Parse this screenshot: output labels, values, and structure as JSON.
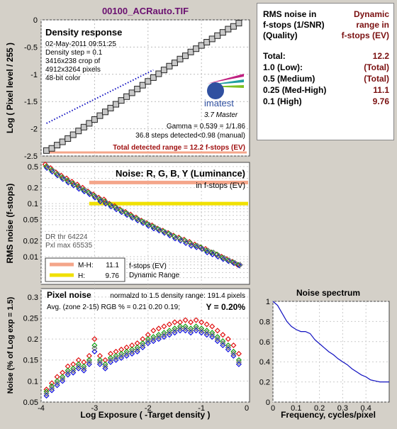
{
  "file_title": "00100_ACRauto.TIF",
  "density": {
    "title": "Density response",
    "info": [
      "02-May-2011 09:51:25",
      "Density step = 0.1",
      "3416x238 crop of",
      "4912x3264 pixels",
      "48-bit color"
    ],
    "logo_text": "imatest",
    "logo_sub": "3.7  Master",
    "gamma_line": "Gamma = 0.539 = 1/1.86",
    "steps_line": "36.8 steps detected<0.98 (manual)",
    "range_line": "Total detected range = 12.2 f-stops (EV)",
    "ylabel": "Log ( Pixel level / 255 )",
    "y_ticks": [
      "0",
      "-0.5",
      "-1",
      "-1.5",
      "-2",
      "-2.5"
    ]
  },
  "noise": {
    "title": "Noise: R, G, B, Y (Luminance)",
    "subtitle": "in f-stops (EV)",
    "dr_thr": "DR thr 64224",
    "pxl_max": "Pxl max 65535",
    "ylabel": "RMS noise (f-stops)",
    "y_ticks": [
      "0.5",
      "0.2",
      "0.1",
      "0.05",
      "0.02",
      "0.01"
    ],
    "legend": [
      {
        "label": "M-H:",
        "value": "11.1",
        "color": "#f4a58a"
      },
      {
        "label": "H:",
        "value": "9.76",
        "color": "#f0e000"
      }
    ],
    "legend_note1": "f-stops (EV)",
    "legend_note2": "Dynamic Range"
  },
  "pixel_noise": {
    "title": "Pixel noise",
    "norm_line": "normalzd to 1.5 density range: 191.4 pixels",
    "avg_line": "Avg. (zone 2-15) RGB % = 0.21  0.20  0.19;",
    "y_line": "Y = 0.20%",
    "ylabel": "Noise (% of Log exp = 1.5)",
    "xlabel": "Log Exposure ( -Target density )",
    "y_ticks": [
      "0.3",
      "0.25",
      "0.2",
      "0.15",
      "0.1",
      "0.05"
    ],
    "x_ticks": [
      "-4",
      "-3",
      "-2",
      "-1",
      "0"
    ]
  },
  "spectrum": {
    "title": "Noise spectrum",
    "xlabel": "Frequency, cycles/pixel",
    "y_ticks": [
      "1",
      "0.8",
      "0.6",
      "0.4",
      "0.2",
      "0"
    ],
    "x_ticks": [
      "0",
      "0.1",
      "0.2",
      "0.3",
      "0.4"
    ]
  },
  "rms_table": {
    "header_left": [
      "RMS noise in",
      "f-stops (1/SNR)",
      "(Quality)"
    ],
    "header_right": [
      "Dynamic",
      "range in",
      "f-stops (EV)"
    ],
    "rows": [
      {
        "q": "Total:",
        "v": "12.2"
      },
      {
        "q": "1.0  (Low):",
        "v": "(Total)"
      },
      {
        "q": "0.5  (Medium)",
        "v": "(Total)"
      },
      {
        "q": "0.25 (Med-High)",
        "v": "11.1"
      },
      {
        "q": "0.1  (High)",
        "v": "9.76"
      }
    ]
  },
  "colors": {
    "red": "#e01010",
    "green": "#10a010",
    "blue": "#1010e0",
    "gray": "#707070",
    "title": "#6a1070"
  },
  "chart_data": [
    {
      "type": "scatter",
      "title": "Density response",
      "ylabel": "Log ( Pixel level / 255 )",
      "x": [
        -3.9,
        -3.8,
        -3.7,
        -3.6,
        -3.5,
        -3.4,
        -3.3,
        -3.2,
        -3.1,
        -3.0,
        -2.9,
        -2.8,
        -2.7,
        -2.6,
        -2.5,
        -2.4,
        -2.3,
        -2.2,
        -2.1,
        -2.0,
        -1.9,
        -1.8,
        -1.7,
        -1.6,
        -1.5,
        -1.4,
        -1.3,
        -1.2,
        -1.1,
        -1.0,
        -0.9,
        -0.8,
        -0.7,
        -0.6,
        -0.5,
        -0.4,
        -0.3
      ],
      "y": [
        -2.4,
        -2.36,
        -2.3,
        -2.24,
        -2.18,
        -2.11,
        -2.04,
        -1.97,
        -1.9,
        -1.83,
        -1.76,
        -1.69,
        -1.62,
        -1.55,
        -1.48,
        -1.41,
        -1.34,
        -1.27,
        -1.2,
        -1.13,
        -1.06,
        -0.99,
        -0.92,
        -0.85,
        -0.79,
        -0.72,
        -0.66,
        -0.59,
        -0.53,
        -0.47,
        -0.41,
        -0.35,
        -0.29,
        -0.23,
        -0.17,
        -0.12,
        -0.06
      ],
      "ylim": [
        -2.5,
        0
      ],
      "gamma_fit": {
        "x": [
          -3.9,
          -1.9
        ],
        "y": [
          -1.9,
          -0.92
        ]
      }
    },
    {
      "type": "scatter",
      "title": "Noise: R, G, B, Y (Luminance)",
      "ylabel": "RMS noise (f-stops)",
      "y_scale": "log",
      "ylim": [
        0.003,
        0.6
      ],
      "x": [
        -3.9,
        -3.8,
        -3.7,
        -3.6,
        -3.5,
        -3.4,
        -3.3,
        -3.2,
        -3.1,
        -3.0,
        -2.9,
        -2.8,
        -2.7,
        -2.6,
        -2.5,
        -2.4,
        -2.3,
        -2.2,
        -2.1,
        -2.0,
        -1.9,
        -1.8,
        -1.7,
        -1.6,
        -1.5,
        -1.4,
        -1.3,
        -1.2,
        -1.1,
        -1.0,
        -0.9,
        -0.8,
        -0.7,
        -0.6,
        -0.5,
        -0.4,
        -0.3
      ],
      "series": [
        {
          "name": "R",
          "values": [
            0.55,
            0.47,
            0.39,
            0.34,
            0.3,
            0.26,
            0.23,
            0.2,
            0.17,
            0.15,
            0.13,
            0.12,
            0.1,
            0.09,
            0.078,
            0.07,
            0.062,
            0.055,
            0.048,
            0.043,
            0.039,
            0.034,
            0.031,
            0.028,
            0.025,
            0.023,
            0.021,
            0.019,
            0.017,
            0.015,
            0.014,
            0.012,
            0.011,
            0.01,
            0.009,
            0.008,
            0.007
          ]
        },
        {
          "name": "G",
          "values": [
            0.5,
            0.43,
            0.36,
            0.31,
            0.27,
            0.24,
            0.21,
            0.18,
            0.16,
            0.14,
            0.12,
            0.11,
            0.095,
            0.085,
            0.074,
            0.066,
            0.058,
            0.052,
            0.046,
            0.041,
            0.037,
            0.033,
            0.03,
            0.027,
            0.024,
            0.022,
            0.02,
            0.018,
            0.016,
            0.015,
            0.013,
            0.012,
            0.011,
            0.0095,
            0.0085,
            0.0078,
            0.007
          ]
        },
        {
          "name": "B",
          "values": [
            0.47,
            0.4,
            0.34,
            0.29,
            0.25,
            0.22,
            0.19,
            0.17,
            0.15,
            0.13,
            0.11,
            0.1,
            0.088,
            0.078,
            0.069,
            0.061,
            0.054,
            0.048,
            0.043,
            0.038,
            0.034,
            0.031,
            0.028,
            0.025,
            0.022,
            0.02,
            0.018,
            0.016,
            0.015,
            0.014,
            0.012,
            0.011,
            0.01,
            0.009,
            0.0082,
            0.0075,
            0.0068
          ]
        },
        {
          "name": "Y",
          "values": [
            0.49,
            0.42,
            0.35,
            0.3,
            0.26,
            0.23,
            0.2,
            0.18,
            0.155,
            0.135,
            0.118,
            0.105,
            0.092,
            0.082,
            0.072,
            0.064,
            0.056,
            0.05,
            0.045,
            0.04,
            0.036,
            0.032,
            0.029,
            0.026,
            0.023,
            0.021,
            0.019,
            0.017,
            0.016,
            0.014,
            0.013,
            0.012,
            0.0105,
            0.0095,
            0.0085,
            0.0077,
            0.007
          ]
        }
      ],
      "reference_lines": [
        {
          "y": 0.25,
          "color": "#f4a58a"
        },
        {
          "y": 0.1,
          "color": "#f0e000"
        }
      ]
    },
    {
      "type": "scatter",
      "title": "Pixel noise",
      "xlabel": "Log Exposure ( -Target density )",
      "ylabel": "Noise (% of Log exp = 1.5)",
      "xlim": [
        -4,
        0
      ],
      "ylim": [
        0.05,
        0.32
      ],
      "x": [
        -3.9,
        -3.8,
        -3.7,
        -3.6,
        -3.5,
        -3.4,
        -3.3,
        -3.2,
        -3.1,
        -3.0,
        -2.9,
        -2.8,
        -2.7,
        -2.6,
        -2.5,
        -2.4,
        -2.3,
        -2.2,
        -2.1,
        -2.0,
        -1.9,
        -1.8,
        -1.7,
        -1.6,
        -1.5,
        -1.4,
        -1.3,
        -1.2,
        -1.1,
        -1.0,
        -0.9,
        -0.8,
        -0.7,
        -0.6,
        -0.5,
        -0.4,
        -0.3
      ],
      "series": [
        {
          "name": "R",
          "values": [
            0.08,
            0.095,
            0.11,
            0.12,
            0.135,
            0.14,
            0.15,
            0.145,
            0.16,
            0.2,
            0.16,
            0.15,
            0.165,
            0.17,
            0.175,
            0.18,
            0.185,
            0.19,
            0.2,
            0.21,
            0.22,
            0.225,
            0.23,
            0.235,
            0.24,
            0.24,
            0.245,
            0.24,
            0.245,
            0.24,
            0.235,
            0.23,
            0.22,
            0.21,
            0.2,
            0.185,
            0.165
          ]
        },
        {
          "name": "G",
          "values": [
            0.075,
            0.088,
            0.1,
            0.11,
            0.125,
            0.13,
            0.14,
            0.135,
            0.15,
            0.185,
            0.15,
            0.14,
            0.155,
            0.16,
            0.165,
            0.17,
            0.175,
            0.18,
            0.19,
            0.2,
            0.205,
            0.21,
            0.215,
            0.22,
            0.225,
            0.23,
            0.23,
            0.225,
            0.23,
            0.225,
            0.22,
            0.215,
            0.205,
            0.195,
            0.185,
            0.17,
            0.15
          ]
        },
        {
          "name": "B",
          "values": [
            0.065,
            0.078,
            0.09,
            0.1,
            0.115,
            0.12,
            0.13,
            0.125,
            0.14,
            0.17,
            0.14,
            0.13,
            0.145,
            0.15,
            0.155,
            0.16,
            0.165,
            0.17,
            0.18,
            0.19,
            0.195,
            0.2,
            0.205,
            0.21,
            0.215,
            0.22,
            0.22,
            0.215,
            0.22,
            0.215,
            0.21,
            0.205,
            0.195,
            0.185,
            0.175,
            0.16,
            0.14
          ]
        },
        {
          "name": "Y",
          "values": [
            0.07,
            0.083,
            0.095,
            0.105,
            0.12,
            0.125,
            0.135,
            0.13,
            0.145,
            0.178,
            0.145,
            0.135,
            0.15,
            0.155,
            0.16,
            0.165,
            0.17,
            0.175,
            0.185,
            0.195,
            0.2,
            0.205,
            0.21,
            0.215,
            0.22,
            0.225,
            0.225,
            0.22,
            0.225,
            0.22,
            0.215,
            0.21,
            0.2,
            0.19,
            0.18,
            0.165,
            0.145
          ]
        }
      ]
    },
    {
      "type": "line",
      "title": "Noise spectrum",
      "xlabel": "Frequency, cycles/pixel",
      "xlim": [
        0,
        0.5
      ],
      "ylim": [
        0,
        1
      ],
      "x": [
        0.0,
        0.02,
        0.04,
        0.06,
        0.08,
        0.1,
        0.12,
        0.14,
        0.16,
        0.18,
        0.2,
        0.22,
        0.24,
        0.26,
        0.28,
        0.3,
        0.32,
        0.34,
        0.36,
        0.38,
        0.4,
        0.42,
        0.44,
        0.46,
        0.48,
        0.5
      ],
      "y": [
        1.0,
        0.96,
        0.88,
        0.8,
        0.75,
        0.72,
        0.7,
        0.7,
        0.68,
        0.62,
        0.58,
        0.54,
        0.5,
        0.47,
        0.43,
        0.4,
        0.37,
        0.33,
        0.3,
        0.27,
        0.25,
        0.22,
        0.21,
        0.2,
        0.2,
        0.2
      ]
    }
  ]
}
